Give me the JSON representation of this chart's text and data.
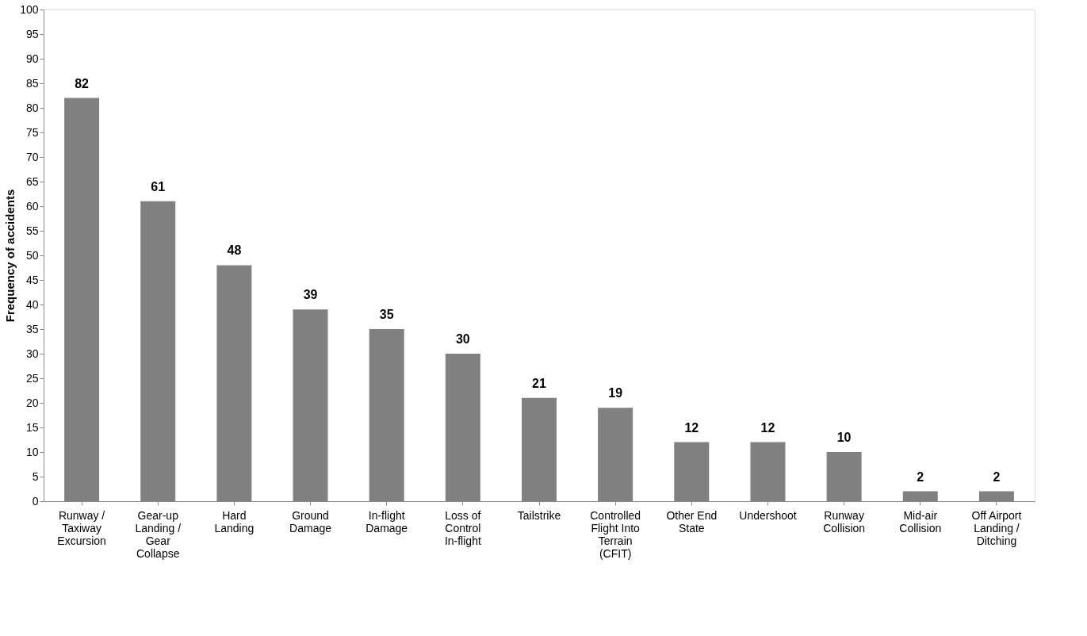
{
  "chart_data": {
    "type": "bar",
    "ylabel": "Frequency of accidents",
    "categories": [
      "Runway / Taxiway Excursion",
      "Gear-up Landing / Gear Collapse",
      "Hard Landing",
      "Ground Damage",
      "In-flight Damage",
      "Loss of Control In-flight",
      "Tailstrike",
      "Controlled Flight Into Terrain (CFIT)",
      "Other End State",
      "Undershoot",
      "Runway Collision",
      "Mid-air Collision",
      "Off Airport Landing / Ditching"
    ],
    "values": [
      82,
      61,
      48,
      39,
      35,
      30,
      21,
      19,
      12,
      12,
      10,
      2,
      2
    ],
    "color": "#808080",
    "ylim": [
      0,
      100
    ],
    "yticks": [
      0,
      5,
      10,
      15,
      20,
      25,
      30,
      35,
      40,
      45,
      50,
      55,
      60,
      65,
      70,
      75,
      80,
      85,
      90,
      95,
      100
    ],
    "grid": false,
    "data_labels": true
  }
}
